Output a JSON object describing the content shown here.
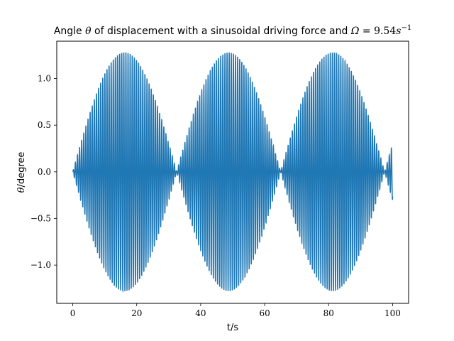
{
  "chart_data": {
    "type": "line",
    "title": {
      "prefix": "Angle ",
      "theta": "θ",
      "middle": " of displacement with a sinusoidal driving force and ",
      "omega": "Ω",
      "equals": " = ",
      "value": "9.54",
      "unit": "s",
      "exponent": "−1"
    },
    "xlabel": "t/s",
    "ylabel": {
      "theta": "θ",
      "unit": "/degree"
    },
    "xlim": [
      -5,
      105
    ],
    "ylim": [
      -1.41,
      1.4
    ],
    "x_ticks": [
      0,
      20,
      40,
      60,
      80,
      100
    ],
    "x_tick_labels": [
      "0",
      "20",
      "40",
      "60",
      "80",
      "100"
    ],
    "y_ticks": [
      -1.0,
      -0.5,
      0.0,
      0.5,
      1.0
    ],
    "y_tick_labels": [
      "−1.0",
      "−0.5",
      "0.0",
      "0.5",
      "1.0"
    ],
    "grid": false,
    "color": "#1f77b4",
    "series": [
      {
        "description_of_signal": "beating oscillation",
        "t_start": 0,
        "t_end": 100,
        "carrier_angular_frequency": 9.54,
        "beat_period": 32.5,
        "peak_amplitude": 1.28,
        "envelope_peaks_t": [
          16.2,
          48.7,
          81.2
        ],
        "envelope_nodes_t": [
          0,
          32.5,
          65,
          97.5
        ],
        "final_value": -0.3
      }
    ]
  }
}
